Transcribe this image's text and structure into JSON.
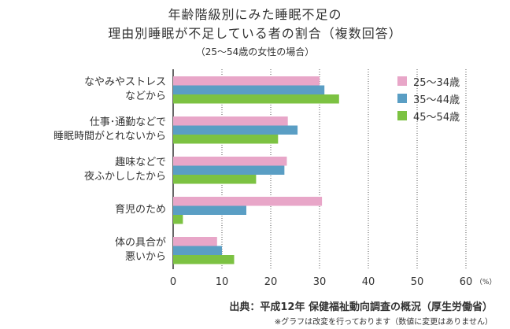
{
  "title_line1": "年齢階級別にみた睡眠不足の",
  "title_line2": "理由別睡眠が不足している者の割合（複数回答）",
  "subtitle": "（25～54歳の女性の場合）",
  "source": "出典：平成12年 保健福祉動向調査の概況（厚生労働省）",
  "note": "※グラフは改変を行っております（数値に変更はありません）",
  "chart_data": {
    "type": "bar",
    "orientation": "horizontal",
    "categories": [
      [
        "なやみやストレス",
        "などから"
      ],
      [
        "仕事･通勤などで",
        "睡眠時間がとれないから"
      ],
      [
        "趣味などで",
        "夜ふかししたから"
      ],
      [
        "育児のため"
      ],
      [
        "体の具合が",
        "悪いから"
      ]
    ],
    "series": [
      {
        "name": "25～34歳",
        "color": "#e8a6c8",
        "values": [
          30.0,
          23.5,
          23.3,
          30.5,
          9.0
        ]
      },
      {
        "name": "35～44歳",
        "color": "#5a9ec4",
        "values": [
          31.0,
          25.5,
          22.8,
          15.0,
          10.0
        ]
      },
      {
        "name": "45～54歳",
        "color": "#7cc242",
        "values": [
          34.0,
          21.5,
          17.0,
          2.0,
          12.5
        ]
      }
    ],
    "xlim": [
      0,
      60
    ],
    "xticks": [
      0,
      10,
      20,
      30,
      40,
      50,
      60
    ],
    "xunit": "（%）",
    "grid": "vertical dotted"
  }
}
